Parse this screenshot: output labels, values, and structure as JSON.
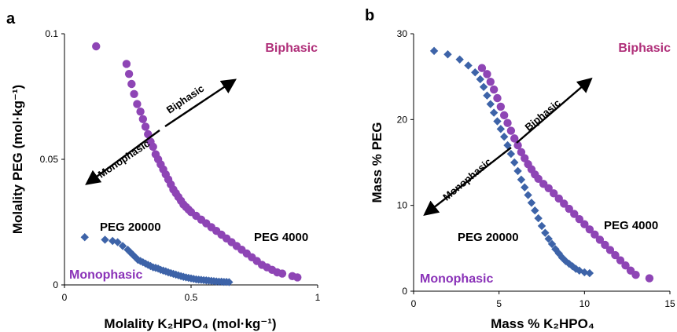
{
  "colors": {
    "peg4000": "#8e45b5",
    "peg20000": "#3d63a8",
    "biphasic": "#b0307a",
    "monophasic": "#8a32b8"
  },
  "chart_data": [
    {
      "panel": "a",
      "type": "scatter",
      "xlabel": "Molality K₂HPO₄ (mol·kg⁻¹)",
      "ylabel": "Molality PEG  (mol·kg⁻¹)",
      "xlim": [
        0,
        1
      ],
      "ylim": [
        0,
        0.1
      ],
      "xticks": [
        "0",
        "0.5",
        "1"
      ],
      "xtick_values": [
        0,
        0.5,
        1
      ],
      "yticks": [
        "0",
        "0.05",
        "0.1"
      ],
      "ytick_values": [
        0,
        0.05,
        0.1
      ],
      "region_biphasic": "Biphasic",
      "region_monophasic": "Monophasic",
      "arrow_up_label": "Biphasic",
      "arrow_down_label": "Monophasic",
      "series": [
        {
          "name": "PEG 4000",
          "marker": "circle",
          "x": [
            0.125,
            0.245,
            0.255,
            0.265,
            0.275,
            0.287,
            0.3,
            0.31,
            0.32,
            0.33,
            0.34,
            0.35,
            0.36,
            0.37,
            0.38,
            0.39,
            0.4,
            0.41,
            0.42,
            0.43,
            0.44,
            0.45,
            0.46,
            0.47,
            0.48,
            0.49,
            0.5,
            0.52,
            0.54,
            0.56,
            0.58,
            0.6,
            0.62,
            0.64,
            0.66,
            0.68,
            0.7,
            0.72,
            0.74,
            0.76,
            0.78,
            0.8,
            0.82,
            0.84,
            0.86,
            0.9,
            0.92
          ],
          "y": [
            0.095,
            0.088,
            0.084,
            0.08,
            0.076,
            0.072,
            0.069,
            0.066,
            0.063,
            0.06,
            0.057,
            0.055,
            0.052,
            0.05,
            0.048,
            0.046,
            0.044,
            0.042,
            0.04,
            0.038,
            0.0365,
            0.035,
            0.0335,
            0.032,
            0.031,
            0.03,
            0.029,
            0.0275,
            0.026,
            0.0245,
            0.023,
            0.0215,
            0.02,
            0.0185,
            0.017,
            0.0155,
            0.014,
            0.0125,
            0.011,
            0.0095,
            0.008,
            0.007,
            0.006,
            0.005,
            0.0045,
            0.0035,
            0.003
          ]
        },
        {
          "name": "PEG 20000",
          "marker": "diamond",
          "x": [
            0.08,
            0.16,
            0.19,
            0.21,
            0.23,
            0.25,
            0.26,
            0.27,
            0.28,
            0.29,
            0.3,
            0.31,
            0.32,
            0.33,
            0.34,
            0.35,
            0.36,
            0.37,
            0.38,
            0.39,
            0.4,
            0.41,
            0.42,
            0.43,
            0.44,
            0.45,
            0.46,
            0.47,
            0.48,
            0.49,
            0.5,
            0.51,
            0.52,
            0.53,
            0.54,
            0.55,
            0.56,
            0.57,
            0.58,
            0.59,
            0.6,
            0.61,
            0.62,
            0.63,
            0.64,
            0.65
          ],
          "y": [
            0.019,
            0.018,
            0.0175,
            0.017,
            0.0155,
            0.014,
            0.013,
            0.012,
            0.011,
            0.01,
            0.0095,
            0.009,
            0.0085,
            0.008,
            0.0075,
            0.007,
            0.0068,
            0.0065,
            0.006,
            0.0057,
            0.0054,
            0.005,
            0.0047,
            0.0044,
            0.0041,
            0.0038,
            0.0035,
            0.0032,
            0.003,
            0.0028,
            0.0026,
            0.0024,
            0.0022,
            0.0021,
            0.002,
            0.0019,
            0.0018,
            0.0017,
            0.0016,
            0.0015,
            0.0014,
            0.0013,
            0.0013,
            0.0012,
            0.0012,
            0.0011
          ]
        }
      ]
    },
    {
      "panel": "b",
      "type": "scatter",
      "xlabel": "Mass % K₂HPO₄",
      "ylabel": "Mass % PEG",
      "xlim": [
        0,
        15
      ],
      "ylim": [
        0,
        30
      ],
      "xticks": [
        "0",
        "5",
        "10",
        "15"
      ],
      "xtick_values": [
        0,
        5,
        10,
        15
      ],
      "yticks": [
        "0",
        "10",
        "20",
        "30"
      ],
      "ytick_values": [
        0,
        10,
        20,
        30
      ],
      "region_biphasic": "Biphasic",
      "region_monophasic": "Monophasic",
      "arrow_up_label": "Biphasic",
      "arrow_down_label": "Monophasic",
      "series": [
        {
          "name": "PEG 4000",
          "marker": "circle",
          "x": [
            4.0,
            4.3,
            4.5,
            4.7,
            4.9,
            5.1,
            5.3,
            5.5,
            5.7,
            5.9,
            6.1,
            6.3,
            6.5,
            6.7,
            6.9,
            7.1,
            7.3,
            7.6,
            7.9,
            8.2,
            8.5,
            8.8,
            9.1,
            9.4,
            9.7,
            10.0,
            10.3,
            10.6,
            10.9,
            11.2,
            11.5,
            11.8,
            12.1,
            12.4,
            12.7,
            13.0,
            13.8
          ],
          "y": [
            26.0,
            25.3,
            24.4,
            23.5,
            22.5,
            21.5,
            20.5,
            19.6,
            18.7,
            17.8,
            17.0,
            16.2,
            15.5,
            14.8,
            14.2,
            13.6,
            13.1,
            12.5,
            12.0,
            11.4,
            10.8,
            10.2,
            9.6,
            9.0,
            8.4,
            7.8,
            7.2,
            6.6,
            6.0,
            5.4,
            4.8,
            4.2,
            3.6,
            3.0,
            2.4,
            1.9,
            1.5
          ]
        },
        {
          "name": "PEG 20000",
          "marker": "diamond",
          "x": [
            1.2,
            2.0,
            2.7,
            3.2,
            3.6,
            3.9,
            4.1,
            4.3,
            4.5,
            4.7,
            4.9,
            5.1,
            5.3,
            5.5,
            5.7,
            5.9,
            6.1,
            6.3,
            6.5,
            6.7,
            6.9,
            7.1,
            7.3,
            7.5,
            7.7,
            7.9,
            8.1,
            8.3,
            8.5,
            8.7,
            8.9,
            9.1,
            9.3,
            9.5,
            9.7,
            10.0,
            10.3
          ],
          "y": [
            28.0,
            27.6,
            27.0,
            26.3,
            25.5,
            24.7,
            23.8,
            22.8,
            21.8,
            20.8,
            19.8,
            18.9,
            18.0,
            17.0,
            16.0,
            15.0,
            14.0,
            13.0,
            12.1,
            11.2,
            10.3,
            9.4,
            8.5,
            7.6,
            6.8,
            6.1,
            5.5,
            4.9,
            4.4,
            3.9,
            3.5,
            3.2,
            2.9,
            2.6,
            2.4,
            2.2,
            2.1
          ]
        }
      ]
    }
  ]
}
